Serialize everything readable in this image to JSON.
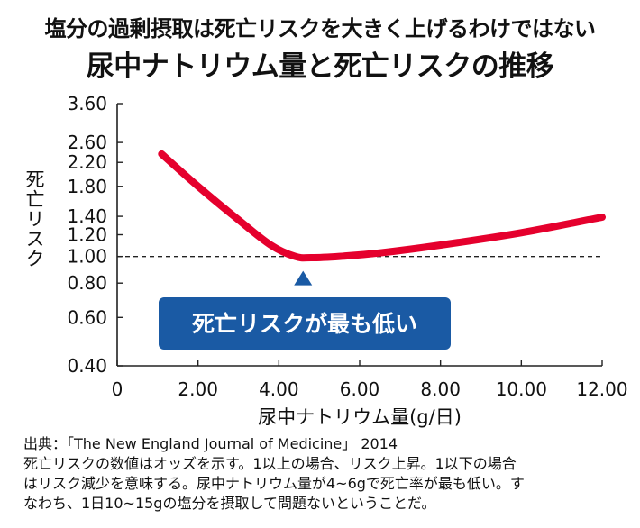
{
  "header": {
    "subtitle": "塩分の過剰摂取は死亡リスクを大きく上げるわけではない",
    "title": "尿中ナトリウム量と死亡リスクの推移"
  },
  "footer": {
    "source": "出典：「The New England Journal of Medicine」 2014",
    "note_lines": [
      "死亡リスクの数値はオッズを示す。1以上の場合、リスク上昇。1以下の場合",
      "はリスク減少を意味する。尿中ナトリウム量が4~6gで死亡率が最も低い。す",
      "なわち、1日10~15gの塩分を摂取して問題ないということだ。"
    ]
  },
  "chart_data": {
    "type": "line",
    "xlabel": "尿中ナトリウム量(g/日)",
    "ylabel": "死亡リスク",
    "x_ticks": [
      0,
      2,
      4,
      6,
      8,
      10,
      12
    ],
    "x_tick_labels": [
      "0",
      "2.00",
      "4.00",
      "6.00",
      "8.00",
      "10.00",
      "12.00"
    ],
    "y_ticks": [
      0.4,
      0.6,
      0.8,
      1.0,
      1.2,
      1.4,
      1.8,
      2.2,
      2.6,
      3.6
    ],
    "y_tick_labels": [
      "0.40",
      "0.60",
      "0.80",
      "1.00",
      "1.20",
      "1.40",
      "1.80",
      "2.20",
      "2.60",
      "3.60"
    ],
    "xlim": [
      0,
      12
    ],
    "ylim": [
      0.4,
      3.6
    ],
    "y_scale": "log",
    "reference_line": {
      "y": 1.0,
      "style": "dashed"
    },
    "series": [
      {
        "color": "#e5002d",
        "x": [
          1.1,
          2.0,
          3.0,
          3.8,
          4.4,
          4.8,
          5.5,
          6.5,
          8.0,
          10.0,
          12.0
        ],
        "y": [
          2.36,
          1.8,
          1.36,
          1.1,
          1.0,
          0.99,
          1.0,
          1.03,
          1.1,
          1.22,
          1.39
        ]
      }
    ],
    "annotation": {
      "text": "死亡リスクが最も低い",
      "color": "#1a5aa4"
    }
  }
}
